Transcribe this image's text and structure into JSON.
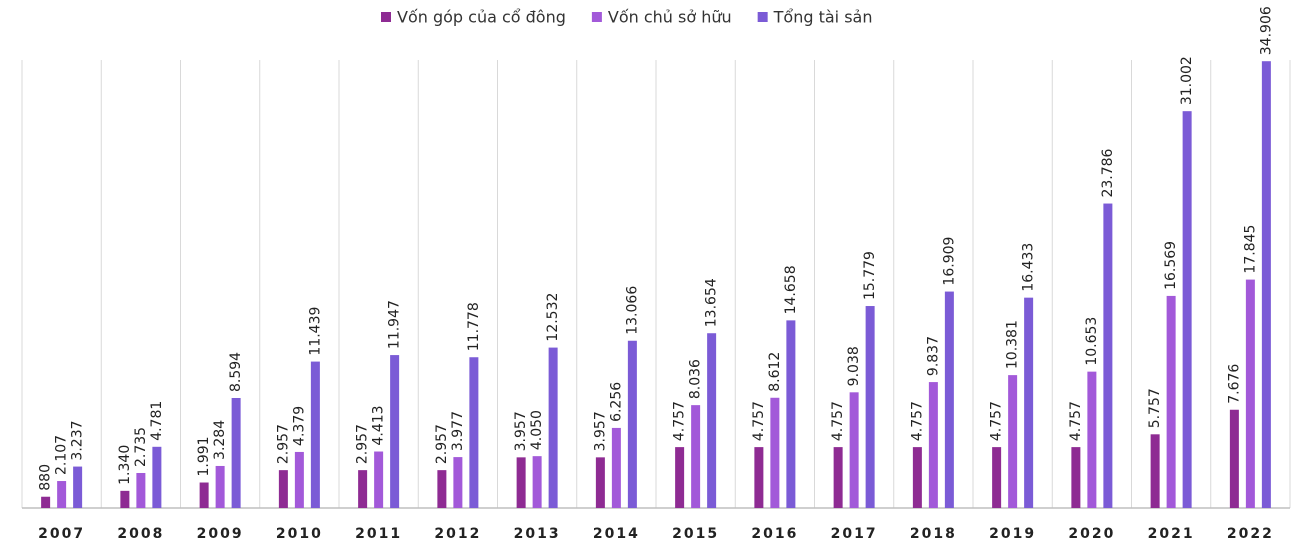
{
  "chart_data": {
    "type": "bar",
    "categories": [
      "2007",
      "2008",
      "2009",
      "2010",
      "2011",
      "2012",
      "2013",
      "2014",
      "2015",
      "2016",
      "2017",
      "2018",
      "2019",
      "2020",
      "2021",
      "2022"
    ],
    "series": [
      {
        "name": "Vốn góp của cổ đông",
        "color": "#8e2b93",
        "values": [
          880,
          1340,
          1991,
          2957,
          2957,
          2957,
          3957,
          3957,
          4757,
          4757,
          4757,
          4757,
          4757,
          4757,
          5757,
          7676
        ],
        "value_labels": [
          "880",
          "1.340",
          "1.991",
          "2.957",
          "2.957",
          "2.957",
          "3.957",
          "3.957",
          "4.757",
          "4.757",
          "4.757",
          "4.757",
          "4.757",
          "4.757",
          "5.757",
          "7.676"
        ]
      },
      {
        "name": "Vốn chủ sở hữu",
        "color": "#a259d9",
        "values": [
          2107,
          2735,
          3284,
          4379,
          4413,
          3977,
          4050,
          6256,
          8036,
          8612,
          9038,
          9837,
          10381,
          10653,
          16569,
          17845
        ],
        "value_labels": [
          "2.107",
          "2.735",
          "3.284",
          "4.379",
          "4.413",
          "3.977",
          "4.050",
          "6.256",
          "8.036",
          "8.612",
          "9.038",
          "9.837",
          "10.381",
          "10.653",
          "16.569",
          "17.845"
        ]
      },
      {
        "name": "Tổng tài sản",
        "color": "#7b5bd6",
        "values": [
          3237,
          4781,
          8594,
          11439,
          11947,
          11778,
          12532,
          13066,
          13654,
          14658,
          15779,
          16909,
          16433,
          23786,
          31002,
          34906
        ],
        "value_labels": [
          "3.237",
          "4.781",
          "8.594",
          "11.439",
          "11.947",
          "11.778",
          "12.532",
          "13.066",
          "13.654",
          "14.658",
          "15.779",
          "16.909",
          "16.433",
          "23.786",
          "31.002",
          "34.906"
        ]
      }
    ],
    "ylim": [
      0,
      35000
    ]
  }
}
